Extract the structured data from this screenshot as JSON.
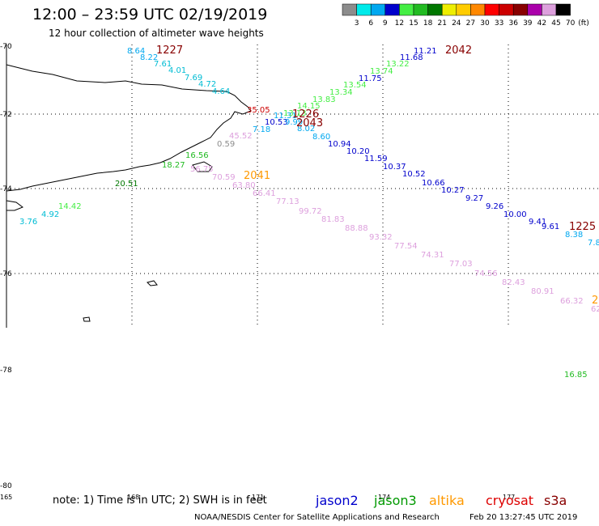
{
  "title": "12:00 – 23:59 UTC 02/19/2019",
  "subtitle": "12 hour collection of altimeter wave heights",
  "note": "note: 1) Time is in UTC; 2) SWH is in feet",
  "footer": "NOAA/NESDIS Center for Satellite Applications and Research",
  "footer_date": "Feb 20 13:27:45 UTC 2019",
  "color_scale": {
    "unit": "(ft)",
    "bins": [
      {
        "label": "3",
        "color": "#8c8c8c"
      },
      {
        "label": "6",
        "color": "#00eaea"
      },
      {
        "label": "9",
        "color": "#00a8f0"
      },
      {
        "label": "12",
        "color": "#0000cc"
      },
      {
        "label": "15",
        "color": "#44ee44"
      },
      {
        "label": "18",
        "color": "#22bb22"
      },
      {
        "label": "21",
        "color": "#007700"
      },
      {
        "label": "24",
        "color": "#eeee00"
      },
      {
        "label": "27",
        "color": "#ffcc00"
      },
      {
        "label": "30",
        "color": "#ff8800"
      },
      {
        "label": "33",
        "color": "#ff0000"
      },
      {
        "label": "36",
        "color": "#cc0000"
      },
      {
        "label": "39",
        "color": "#880000"
      },
      {
        "label": "42",
        "color": "#aa00aa"
      },
      {
        "label": "45",
        "color": "#dda0dd"
      },
      {
        "label": "70",
        "color": "#000000"
      }
    ]
  },
  "satellites": [
    {
      "name": "jason2",
      "color": "#0000cc"
    },
    {
      "name": "jason3",
      "color": "#009900"
    },
    {
      "name": "altika",
      "color": "#ff9900"
    },
    {
      "name": "cryosat",
      "color": "#dd0000"
    },
    {
      "name": "s3a",
      "color": "#880000"
    }
  ],
  "lat_labels": [
    "-70",
    "-72",
    "-74",
    "-76",
    "-78",
    "-80"
  ],
  "lon_labels": [
    "165",
    "168",
    "171",
    "174",
    "177"
  ],
  "time_labels": [
    {
      "text": "1227",
      "color": "#880000"
    },
    {
      "text": "2042",
      "color": "#880000"
    },
    {
      "text": "1226",
      "color": "#880000"
    },
    {
      "text": "2043",
      "color": "#880000"
    },
    {
      "text": "2041",
      "color": "#ff9900"
    },
    {
      "text": "1225",
      "color": "#880000"
    },
    {
      "text": "2",
      "color": "#ff9900"
    }
  ],
  "tracks": [
    {
      "name": "s3a-1227",
      "points": [
        {
          "v": "8.64",
          "c": "#00a8f0"
        },
        {
          "v": "8.22",
          "c": "#00a8f0"
        },
        {
          "v": "7.61",
          "c": "#00bcd4"
        },
        {
          "v": "4.01",
          "c": "#00bcd4"
        },
        {
          "v": "7.69",
          "c": "#00bcd4"
        },
        {
          "v": "4.72",
          "c": "#00bcd4"
        },
        {
          "v": "4.64",
          "c": "#00bcd4"
        },
        {
          "v": "35.05",
          "c": "#cc0000"
        },
        {
          "v": "11.31",
          "c": "#00a8f0"
        },
        {
          "v": "10.53",
          "c": "#0000cc"
        },
        {
          "v": "7.18",
          "c": "#00a8f0"
        },
        {
          "v": "0.59",
          "c": "#8c8c8c"
        },
        {
          "v": "16.56",
          "c": "#22bb22"
        },
        {
          "v": "18.27",
          "c": "#22bb22"
        },
        {
          "v": "20.51",
          "c": "#007700"
        },
        {
          "v": "14.42",
          "c": "#44ee44"
        },
        {
          "v": "4.92",
          "c": "#00bcd4"
        },
        {
          "v": "3.76",
          "c": "#00bcd4"
        }
      ]
    },
    {
      "name": "jason3-2042",
      "points": [
        {
          "v": "11.21",
          "c": "#0000cc"
        },
        {
          "v": "11.68",
          "c": "#0000cc"
        },
        {
          "v": "13.22",
          "c": "#44ee44"
        },
        {
          "v": "13.74",
          "c": "#44ee44"
        },
        {
          "v": "11.75",
          "c": "#0000cc"
        },
        {
          "v": "13.54",
          "c": "#44ee44"
        },
        {
          "v": "13.34",
          "c": "#44ee44"
        },
        {
          "v": "13.83",
          "c": "#44ee44"
        },
        {
          "v": "14.15",
          "c": "#44ee44"
        },
        {
          "v": "13.13",
          "c": "#44ee44"
        }
      ]
    },
    {
      "name": "jason2-2043",
      "points": [
        {
          "v": "9.99",
          "c": "#00a8f0"
        },
        {
          "v": "8.02",
          "c": "#00a8f0"
        },
        {
          "v": "8.60",
          "c": "#00a8f0"
        },
        {
          "v": "10.94",
          "c": "#0000cc"
        },
        {
          "v": "10.20",
          "c": "#0000cc"
        },
        {
          "v": "11.59",
          "c": "#0000cc"
        },
        {
          "v": "10.37",
          "c": "#0000cc"
        },
        {
          "v": "10.52",
          "c": "#0000cc"
        },
        {
          "v": "10.66",
          "c": "#0000cc"
        },
        {
          "v": "10.27",
          "c": "#0000cc"
        },
        {
          "v": "9.27",
          "c": "#0000cc"
        },
        {
          "v": "9.26",
          "c": "#0000cc"
        },
        {
          "v": "10.00",
          "c": "#0000cc"
        },
        {
          "v": "9.41",
          "c": "#0000cc"
        },
        {
          "v": "9.61",
          "c": "#0000cc"
        },
        {
          "v": "8.38",
          "c": "#00a8f0"
        },
        {
          "v": "7.8",
          "c": "#00a8f0"
        }
      ]
    },
    {
      "name": "altika-2041",
      "points": [
        {
          "v": "45.52",
          "c": "#dda0dd"
        },
        {
          "v": "56.75",
          "c": "#dda0dd"
        },
        {
          "v": "70.59",
          "c": "#dda0dd"
        },
        {
          "v": "63.80",
          "c": "#dda0dd"
        },
        {
          "v": "66.41",
          "c": "#dda0dd"
        },
        {
          "v": "77.13",
          "c": "#dda0dd"
        },
        {
          "v": "99.72",
          "c": "#dda0dd"
        },
        {
          "v": "81.83",
          "c": "#dda0dd"
        },
        {
          "v": "88.88",
          "c": "#dda0dd"
        },
        {
          "v": "93.32",
          "c": "#dda0dd"
        },
        {
          "v": "77.54",
          "c": "#dda0dd"
        },
        {
          "v": "74.31",
          "c": "#dda0dd"
        },
        {
          "v": "77.03",
          "c": "#dda0dd"
        },
        {
          "v": "74.56",
          "c": "#dda0dd"
        },
        {
          "v": "82.43",
          "c": "#dda0dd"
        },
        {
          "v": "80.91",
          "c": "#dda0dd"
        },
        {
          "v": "66.32",
          "c": "#dda0dd"
        },
        {
          "v": "62",
          "c": "#dda0dd"
        }
      ]
    },
    {
      "name": "jason3-lone",
      "points": [
        {
          "v": "16.85",
          "c": "#22bb22"
        }
      ]
    }
  ]
}
